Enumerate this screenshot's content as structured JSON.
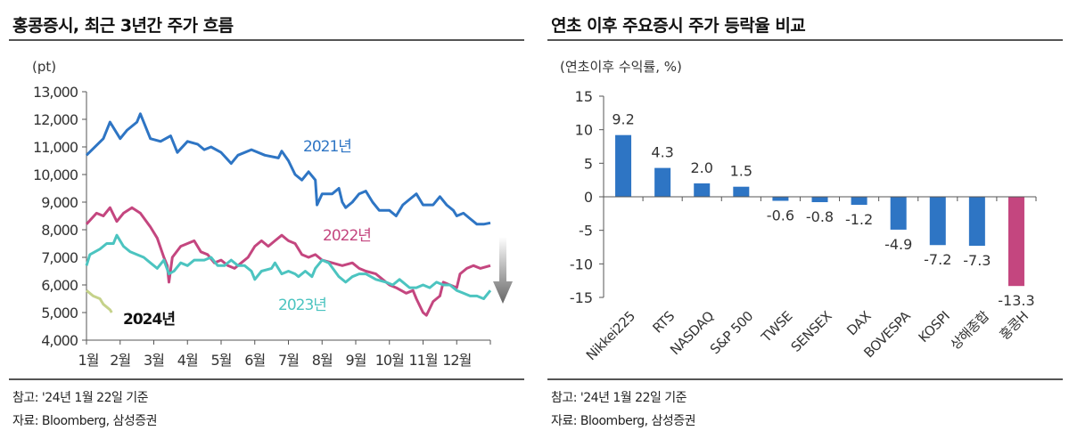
{
  "left": {
    "title": "홍콩증시, 최근 3년간 주가 흐름",
    "notes": [
      "참고: '24년 1월 22일 기준",
      "자료: Bloomberg, 삼성증권"
    ]
  },
  "right": {
    "title": "연초 이후 주요증시 주가 등락율 비교",
    "notes": [
      "참고: '24년 1월 22일 기준",
      "자료: Bloomberg, 삼성증권"
    ]
  },
  "chart_data": [
    {
      "type": "line",
      "ylabel": "(pt)",
      "ylim": [
        4000,
        13000
      ],
      "yticks": [
        "13,000",
        "12,000",
        "11,000",
        "10,000",
        "9,000",
        "8,000",
        "7,000",
        "6,000",
        "5,000",
        "4,000"
      ],
      "xticks": [
        "1월",
        "2월",
        "3월",
        "4월",
        "5월",
        "6월",
        "7월",
        "8월",
        "9월",
        "10월",
        "11월",
        "12월"
      ],
      "annotation": "downward-arrow",
      "series": [
        {
          "name": "2021년",
          "color": "#2e75c4",
          "x": [
            0,
            0.5,
            0.7,
            1.0,
            1.2,
            1.5,
            1.6,
            1.9,
            2.2,
            2.5,
            2.7,
            3.0,
            3.3,
            3.5,
            3.7,
            4.0,
            4.3,
            4.5,
            4.9,
            5.3,
            5.7,
            5.8,
            6.0,
            6.2,
            6.4,
            6.6,
            6.8,
            6.85,
            7.0,
            7.3,
            7.5,
            7.6,
            7.7,
            7.9,
            8.1,
            8.3,
            8.5,
            8.7,
            9.0,
            9.2,
            9.4,
            9.6,
            9.8,
            10.0,
            10.3,
            10.5,
            10.7,
            10.9,
            11.0,
            11.2,
            11.4,
            11.6,
            11.8,
            12
          ],
          "y": [
            10700,
            11300,
            11900,
            11300,
            11600,
            11900,
            12200,
            11300,
            11200,
            11400,
            10800,
            11200,
            11100,
            10900,
            11000,
            10800,
            10400,
            10700,
            10900,
            10700,
            10600,
            10850,
            10500,
            10000,
            9800,
            10100,
            9800,
            8900,
            9300,
            9300,
            9500,
            9000,
            8800,
            9000,
            9300,
            9400,
            9000,
            8700,
            8700,
            8500,
            8900,
            9100,
            9300,
            8900,
            8900,
            9200,
            8900,
            8700,
            8500,
            8600,
            8400,
            8200,
            8200,
            8250
          ]
        },
        {
          "name": "2022년",
          "color": "#c4467f",
          "x": [
            0,
            0.3,
            0.5,
            0.7,
            0.9,
            1.1,
            1.35,
            1.6,
            1.9,
            2.1,
            2.3,
            2.4,
            2.45,
            2.55,
            2.8,
            3.0,
            3.2,
            3.4,
            3.6,
            3.8,
            4.0,
            4.2,
            4.4,
            4.6,
            4.8,
            5.0,
            5.2,
            5.4,
            5.6,
            5.8,
            6.0,
            6.2,
            6.4,
            6.6,
            6.8,
            7.0,
            7.3,
            7.6,
            7.9,
            8.1,
            8.3,
            8.6,
            8.8,
            9.0,
            9.2,
            9.5,
            9.7,
            9.8,
            10.0,
            10.1,
            10.3,
            10.5,
            10.6,
            10.8,
            11.0,
            11.1,
            11.3,
            11.5,
            11.7,
            12
          ],
          "y": [
            8200,
            8600,
            8500,
            8800,
            8300,
            8600,
            8800,
            8600,
            8100,
            7700,
            7000,
            6700,
            6100,
            7000,
            7400,
            7500,
            7600,
            7200,
            7100,
            6800,
            6900,
            6700,
            6600,
            6800,
            7000,
            7400,
            7600,
            7400,
            7600,
            7800,
            7600,
            7500,
            7100,
            7000,
            7100,
            6900,
            6800,
            6700,
            6800,
            6600,
            6500,
            6400,
            6200,
            6000,
            5900,
            5700,
            5800,
            5500,
            5000,
            4900,
            5400,
            5600,
            6100,
            6000,
            5900,
            6400,
            6600,
            6700,
            6600,
            6700
          ]
        },
        {
          "name": "2023년",
          "color": "#4cc4c0",
          "x": [
            0,
            0.1,
            0.4,
            0.6,
            0.8,
            0.9,
            1.1,
            1.3,
            1.5,
            1.7,
            1.9,
            2.1,
            2.3,
            2.45,
            2.6,
            2.8,
            3.0,
            3.2,
            3.5,
            3.7,
            3.9,
            4.1,
            4.3,
            4.5,
            4.7,
            4.9,
            5.0,
            5.2,
            5.5,
            5.6,
            5.8,
            6.0,
            6.2,
            6.3,
            6.5,
            6.7,
            6.8,
            7.0,
            7.2,
            7.5,
            7.7,
            7.9,
            8.1,
            8.3,
            8.6,
            8.9,
            9.1,
            9.3,
            9.6,
            9.8,
            10.0,
            10.2,
            10.4,
            10.6,
            10.8,
            11.0,
            11.2,
            11.4,
            11.6,
            11.8,
            12
          ],
          "y": [
            6700,
            7100,
            7300,
            7500,
            7500,
            7800,
            7400,
            7200,
            7100,
            7000,
            6800,
            6600,
            6900,
            6400,
            6500,
            6800,
            6700,
            6900,
            6900,
            7000,
            6700,
            6700,
            6900,
            6700,
            6700,
            6500,
            6200,
            6500,
            6600,
            6800,
            6400,
            6500,
            6400,
            6300,
            6500,
            6300,
            6600,
            6900,
            6800,
            6300,
            6100,
            6300,
            6400,
            6400,
            6200,
            6100,
            6000,
            6200,
            5900,
            5900,
            6000,
            5900,
            6100,
            6000,
            6000,
            5800,
            5700,
            5600,
            5600,
            5500,
            5800
          ]
        },
        {
          "name": "2024년",
          "color": "#c5d28a",
          "x": [
            0,
            0.2,
            0.4,
            0.5,
            0.7,
            0.75
          ],
          "y": [
            5800,
            5600,
            5500,
            5300,
            5100,
            5000
          ]
        }
      ]
    },
    {
      "type": "bar",
      "ylabel": "(연초이후 수익률, %)",
      "ylim": [
        -15,
        15
      ],
      "yticks": [
        "15",
        "10",
        "5",
        "0",
        "-5",
        "-10",
        "-15"
      ],
      "categories": [
        "Nikkei225",
        "RTS",
        "NASDAQ",
        "S&P 500",
        "TWSE",
        "SENSEX",
        "DAX",
        "BOVESPA",
        "KOSPI",
        "상해종합",
        "홍콩H"
      ],
      "values": [
        9.2,
        4.3,
        2.0,
        1.5,
        -0.6,
        -0.8,
        -1.2,
        -4.9,
        -7.2,
        -7.3,
        -13.3
      ],
      "labels": [
        "9.2",
        "4.3",
        "2.0",
        "1.5",
        "-0.6",
        "-0.8",
        "-1.2",
        "-4.9",
        "-7.2",
        "-7.3",
        "-13.3"
      ],
      "colors": {
        "default": "#2e75c4",
        "highlight": "#c4467f"
      }
    }
  ]
}
